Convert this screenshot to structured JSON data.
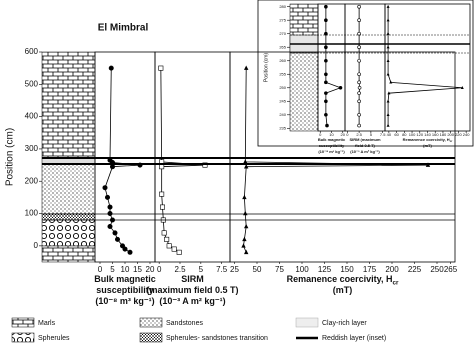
{
  "chart_data": [
    {
      "type": "line",
      "title": "El Mimbral",
      "ylabel": "Position (cm)",
      "xlabel": [
        "Bulk magnetic",
        "susceptibility",
        "(10⁻⁸ m³ kg⁻¹)"
      ],
      "xlim": [
        -2,
        22
      ],
      "xticks": [
        0,
        5,
        10,
        15,
        20
      ],
      "ylim": [
        -50,
        600
      ],
      "yticks": [
        0,
        100,
        200,
        300,
        400,
        500,
        600
      ],
      "marker": "filled-circle",
      "color": "#000000",
      "y": [
        550,
        265,
        258,
        250,
        245,
        180,
        150,
        120,
        100,
        80,
        60,
        40,
        20,
        0,
        -10,
        -20
      ],
      "values": [
        4.5,
        4,
        5,
        16,
        5,
        2,
        3,
        4,
        4,
        5,
        4,
        6,
        7,
        9,
        10,
        12
      ]
    },
    {
      "type": "line",
      "xlabel": [
        "SIRM",
        "(maximum field 0.5 T)",
        "(10⁻³ A m² kg⁻¹)"
      ],
      "xlim": [
        -0.5,
        8.5
      ],
      "xticks": [
        0,
        2.5,
        5,
        7.5
      ],
      "ylim": [
        -50,
        600
      ],
      "marker": "open-square",
      "color": "#000000",
      "y": [
        550,
        260,
        250,
        245,
        160,
        120,
        80,
        40,
        20,
        0,
        -10,
        -20
      ],
      "values": [
        0.2,
        0.3,
        5.5,
        0.3,
        0.3,
        0.4,
        0.5,
        0.6,
        0.9,
        1.2,
        1.8,
        2.4
      ]
    },
    {
      "type": "line",
      "xlabel": [
        "Remanence coercivity, H",
        "(mT)"
      ],
      "xlabel_sub": "cr",
      "xlim": [
        20,
        270
      ],
      "xticks": [
        25,
        50,
        75,
        100,
        125,
        150,
        175,
        200,
        225,
        250,
        265
      ],
      "ylim": [
        -50,
        600
      ],
      "marker": "filled-triangle",
      "color": "#000000",
      "y": [
        550,
        260,
        250,
        245,
        150,
        100,
        60,
        20,
        0,
        -20
      ],
      "values": [
        38,
        37,
        240,
        38,
        36,
        37,
        38,
        36,
        35,
        38
      ]
    },
    {
      "type": "line",
      "ylabel": "Position (cm)",
      "xlabel": [
        "Bulk magnetic",
        "susceptibility",
        "(10⁻⁸ m³ kg⁻¹)"
      ],
      "xlim": [
        -2,
        22
      ],
      "xticks": [
        0,
        10,
        20
      ],
      "ylim": [
        234,
        281
      ],
      "yticks": [
        235,
        240,
        245,
        250,
        255,
        260,
        265,
        270,
        275,
        280
      ],
      "marker": "filled-circle",
      "color": "#000000",
      "y": [
        280,
        275,
        270,
        265,
        260,
        255,
        252,
        250,
        248,
        245,
        240,
        236
      ],
      "values": [
        5,
        5,
        5,
        5,
        5,
        5,
        5,
        18,
        5,
        5,
        5,
        6
      ]
    },
    {
      "type": "line",
      "xlabel": [
        "SIRM (maximum",
        "field 0.5 T)",
        "(10⁻³ A m² kg⁻¹)"
      ],
      "xlim": [
        -0.5,
        8
      ],
      "xticks": [
        0,
        2.5,
        5,
        7.5
      ],
      "ylim": [
        234,
        281
      ],
      "marker": "open-circle",
      "color": "#000000",
      "y": [
        280,
        275,
        270,
        265,
        260,
        255,
        252,
        250,
        248,
        245,
        240,
        236
      ],
      "values": [
        2.5,
        2.5,
        2.5,
        2.5,
        2.5,
        2.5,
        2.5,
        2.6,
        2.5,
        2.5,
        2.5,
        2.5
      ]
    },
    {
      "type": "line",
      "xlabel": [
        "Remanence coercivity, H",
        "(mT)"
      ],
      "xlabel_sub": "cr",
      "xlim": [
        30,
        250
      ],
      "xticks": [
        40,
        60,
        80,
        100,
        120,
        140,
        160,
        180,
        200,
        220,
        240
      ],
      "ylim": [
        234,
        281
      ],
      "marker": "filled-triangle",
      "color": "#000000",
      "y": [
        280,
        275,
        270,
        265,
        260,
        255,
        252,
        250,
        248,
        245,
        240,
        236
      ],
      "values": [
        38,
        38,
        38,
        38,
        38,
        38,
        45,
        230,
        40,
        38,
        38,
        38
      ]
    }
  ],
  "legend": {
    "items": [
      "Marls",
      "Sandstones",
      "Clay-rich layer",
      "Spherules",
      "Spherules- sandstones transition",
      "Reddish layer (inset)"
    ]
  }
}
